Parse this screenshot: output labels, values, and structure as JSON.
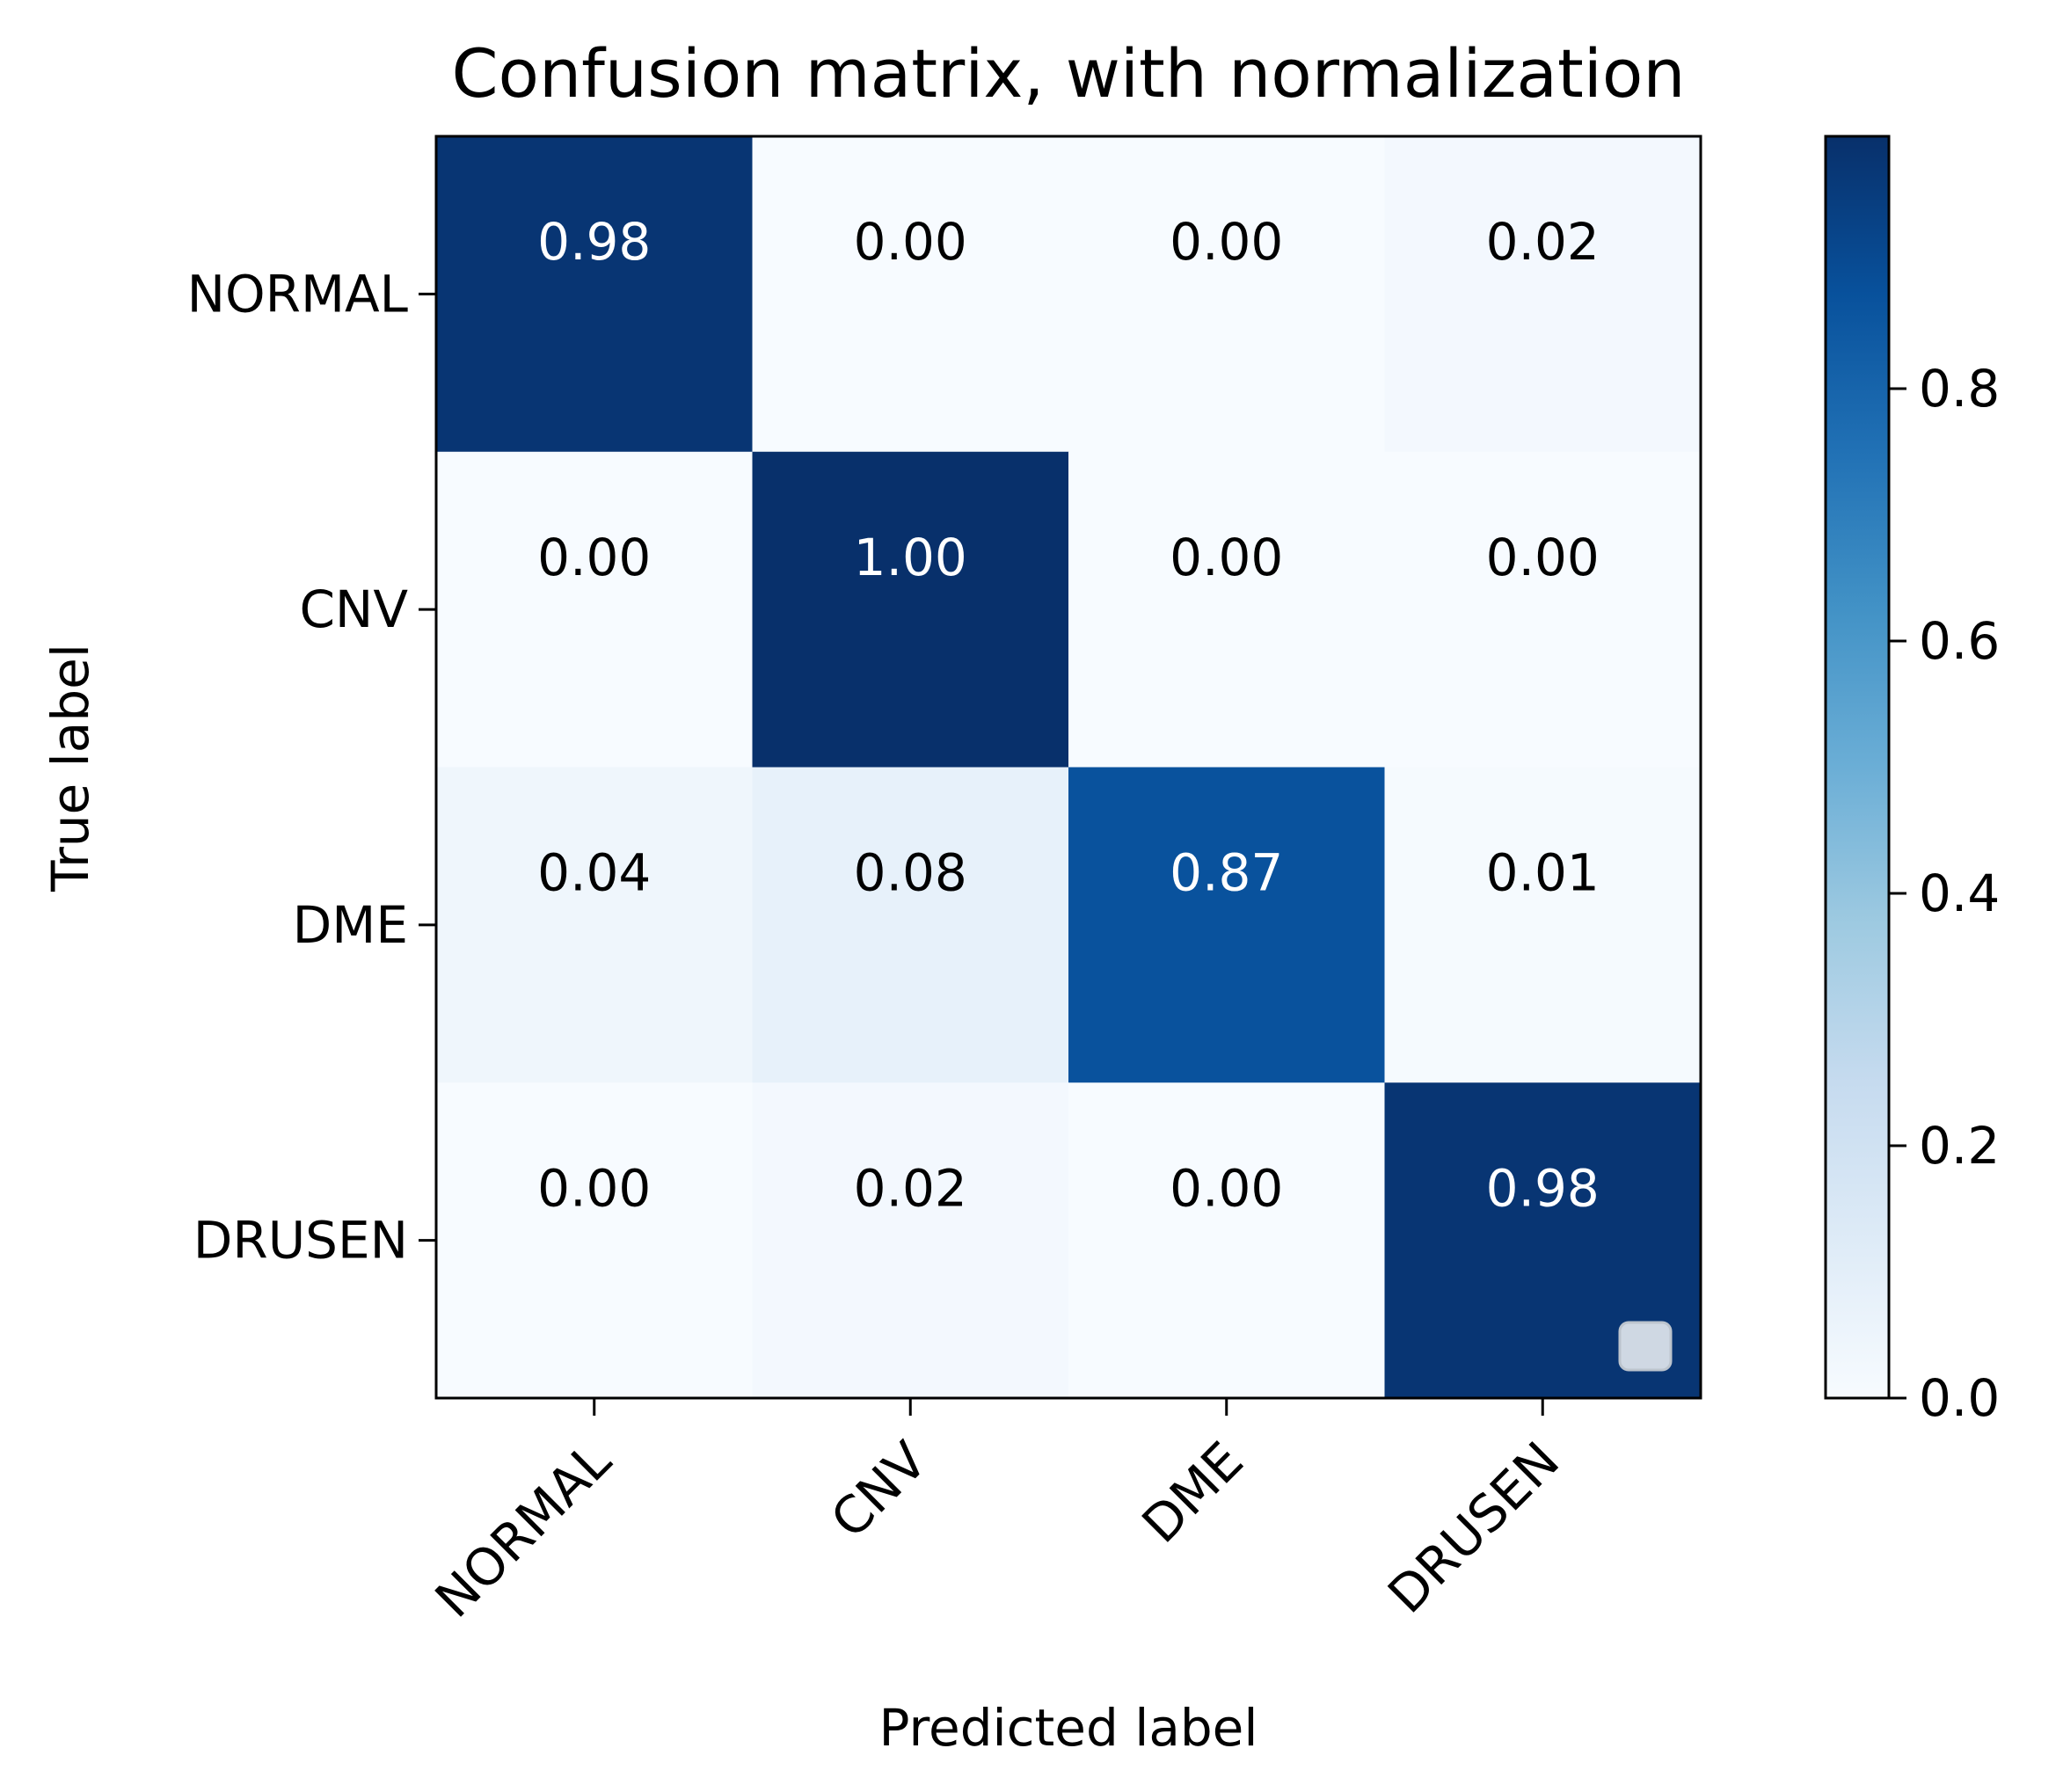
{
  "chart_data": {
    "type": "heatmap",
    "title": "Confusion matrix, with normalization",
    "xlabel": "Predicted label",
    "ylabel": "True label",
    "x_categories": [
      "NORMAL",
      "CNV",
      "DME",
      "DRUSEN"
    ],
    "y_categories": [
      "NORMAL",
      "CNV",
      "DME",
      "DRUSEN"
    ],
    "values": [
      [
        0.98,
        0.0,
        0.0,
        0.02
      ],
      [
        0.0,
        1.0,
        0.0,
        0.0
      ],
      [
        0.04,
        0.08,
        0.87,
        0.01
      ],
      [
        0.0,
        0.02,
        0.0,
        0.98
      ]
    ],
    "value_labels": [
      [
        "0.98",
        "0.00",
        "0.00",
        "0.02"
      ],
      [
        "0.00",
        "1.00",
        "0.00",
        "0.00"
      ],
      [
        "0.04",
        "0.08",
        "0.87",
        "0.01"
      ],
      [
        "0.00",
        "0.02",
        "0.00",
        "0.98"
      ]
    ],
    "colormap": "Blues",
    "colorbar": {
      "range": [
        0.0,
        1.0
      ],
      "ticks": [
        0.0,
        0.2,
        0.4,
        0.6,
        0.8
      ],
      "tick_labels": [
        "0.0",
        "0.2",
        "0.4",
        "0.6",
        "0.8"
      ]
    },
    "text_color_dark": "#000000",
    "text_color_light": "#ffffff",
    "legend_placement": "lower-right"
  }
}
